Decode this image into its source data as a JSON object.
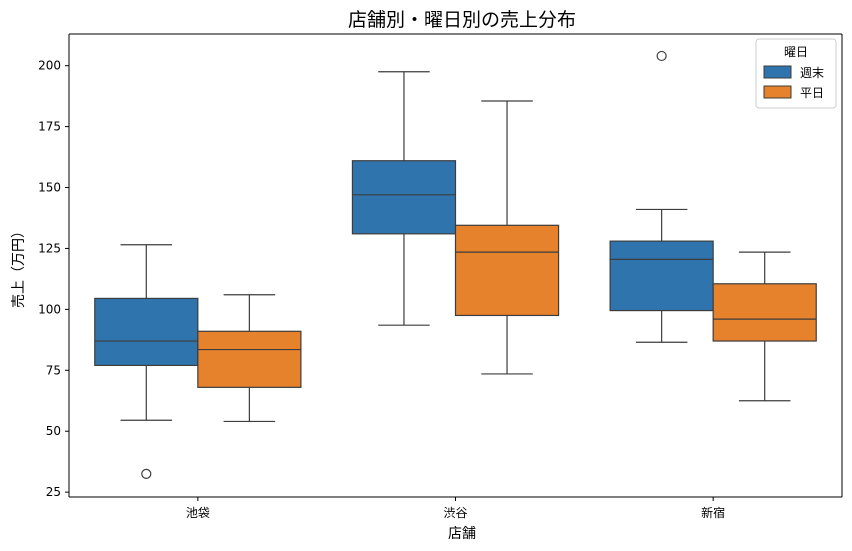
{
  "chart_data": {
    "type": "box",
    "title": "店舗別・曜日別の売上分布",
    "xlabel": "店舗",
    "ylabel": "売上（万円）",
    "categories": [
      "池袋",
      "渋谷",
      "新宿"
    ],
    "ylim": [
      23,
      213
    ],
    "yticks": [
      25,
      50,
      75,
      100,
      125,
      150,
      175,
      200
    ],
    "grid": false,
    "legend": {
      "title": "曜日",
      "position": "top-right"
    },
    "series": [
      {
        "name": "週末",
        "color": "#2f74ad",
        "boxes": [
          {
            "category": "池袋",
            "whisker_low": 54.5,
            "q1": 77,
            "median": 87,
            "q3": 104.5,
            "whisker_high": 126.5,
            "outliers": [
              32.5
            ]
          },
          {
            "category": "渋谷",
            "whisker_low": 93.5,
            "q1": 131,
            "median": 147,
            "q3": 161,
            "whisker_high": 197.5,
            "outliers": []
          },
          {
            "category": "新宿",
            "whisker_low": 86.5,
            "q1": 99.5,
            "median": 120.5,
            "q3": 128,
            "whisker_high": 141,
            "outliers": [
              204
            ]
          }
        ]
      },
      {
        "name": "平日",
        "color": "#e6812c",
        "boxes": [
          {
            "category": "池袋",
            "whisker_low": 54,
            "q1": 68,
            "median": 83.5,
            "q3": 91,
            "whisker_high": 106,
            "outliers": []
          },
          {
            "category": "渋谷",
            "whisker_low": 73.5,
            "q1": 97.5,
            "median": 123.5,
            "q3": 134.5,
            "whisker_high": 185.5,
            "outliers": []
          },
          {
            "category": "新宿",
            "whisker_low": 62.5,
            "q1": 87,
            "median": 96,
            "q3": 110.5,
            "whisker_high": 123.5,
            "outliers": []
          }
        ]
      }
    ]
  }
}
